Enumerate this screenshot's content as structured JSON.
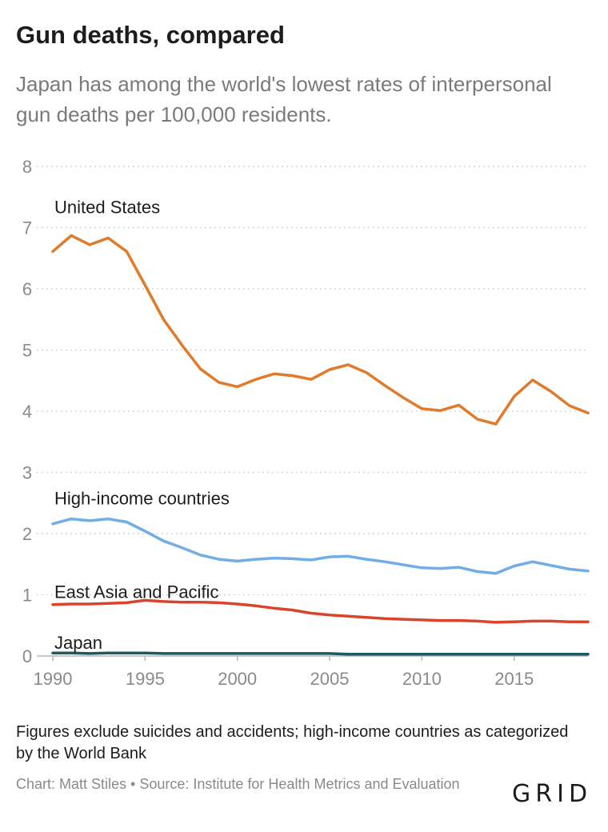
{
  "title": "Gun deaths, compared",
  "subtitle": "Japan has among the world's lowest rates of interpersonal gun deaths per 100,000 residents.",
  "note": "Figures exclude suicides and accidents; high-income countries as categorized by the World Bank",
  "source": "Chart: Matt Stiles • Source: Institute for Health Metrics and Evaluation",
  "logo": "GRID",
  "chart_data": {
    "type": "line",
    "x": [
      1990,
      1991,
      1992,
      1993,
      1994,
      1995,
      1996,
      1997,
      1998,
      1999,
      2000,
      2001,
      2002,
      2003,
      2004,
      2005,
      2006,
      2007,
      2008,
      2009,
      2010,
      2011,
      2012,
      2013,
      2014,
      2015,
      2016,
      2017,
      2018,
      2019
    ],
    "xlim": [
      1990,
      2019
    ],
    "ylim": [
      0,
      8
    ],
    "x_ticks": [
      1990,
      1995,
      2000,
      2005,
      2010,
      2015
    ],
    "y_ticks": [
      0,
      1,
      2,
      3,
      4,
      5,
      6,
      7,
      8
    ],
    "grid": true,
    "legend": "direct labels",
    "series": [
      {
        "name": "United States",
        "color": "#e07b2c",
        "label_at": 7.34,
        "values": [
          6.61,
          6.87,
          6.72,
          6.83,
          6.61,
          6.06,
          5.5,
          5.08,
          4.69,
          4.47,
          4.4,
          4.52,
          4.61,
          4.58,
          4.52,
          4.68,
          4.76,
          4.63,
          4.42,
          4.22,
          4.04,
          4.01,
          4.1,
          3.87,
          3.79,
          4.24,
          4.51,
          4.32,
          4.09,
          3.97
        ]
      },
      {
        "name": "High-income countries",
        "color": "#72ade6",
        "label_at": 2.58,
        "values": [
          2.16,
          2.24,
          2.21,
          2.24,
          2.19,
          2.04,
          1.88,
          1.77,
          1.65,
          1.58,
          1.55,
          1.58,
          1.6,
          1.59,
          1.57,
          1.62,
          1.63,
          1.58,
          1.54,
          1.49,
          1.44,
          1.43,
          1.45,
          1.38,
          1.35,
          1.47,
          1.54,
          1.48,
          1.42,
          1.39
        ]
      },
      {
        "name": "East Asia and Pacific",
        "color": "#d9442d",
        "label_at": 1.05,
        "values": [
          0.84,
          0.85,
          0.85,
          0.86,
          0.87,
          0.91,
          0.89,
          0.88,
          0.88,
          0.87,
          0.85,
          0.82,
          0.78,
          0.75,
          0.7,
          0.67,
          0.65,
          0.63,
          0.61,
          0.6,
          0.59,
          0.58,
          0.58,
          0.57,
          0.55,
          0.56,
          0.57,
          0.57,
          0.56,
          0.56
        ]
      },
      {
        "name": "Japan",
        "color": "#1a5c62",
        "label_at": 0.22,
        "values": [
          0.05,
          0.05,
          0.04,
          0.05,
          0.05,
          0.05,
          0.04,
          0.04,
          0.04,
          0.04,
          0.04,
          0.04,
          0.04,
          0.04,
          0.04,
          0.04,
          0.03,
          0.03,
          0.03,
          0.03,
          0.03,
          0.03,
          0.03,
          0.03,
          0.03,
          0.03,
          0.03,
          0.03,
          0.03,
          0.03
        ]
      }
    ]
  }
}
